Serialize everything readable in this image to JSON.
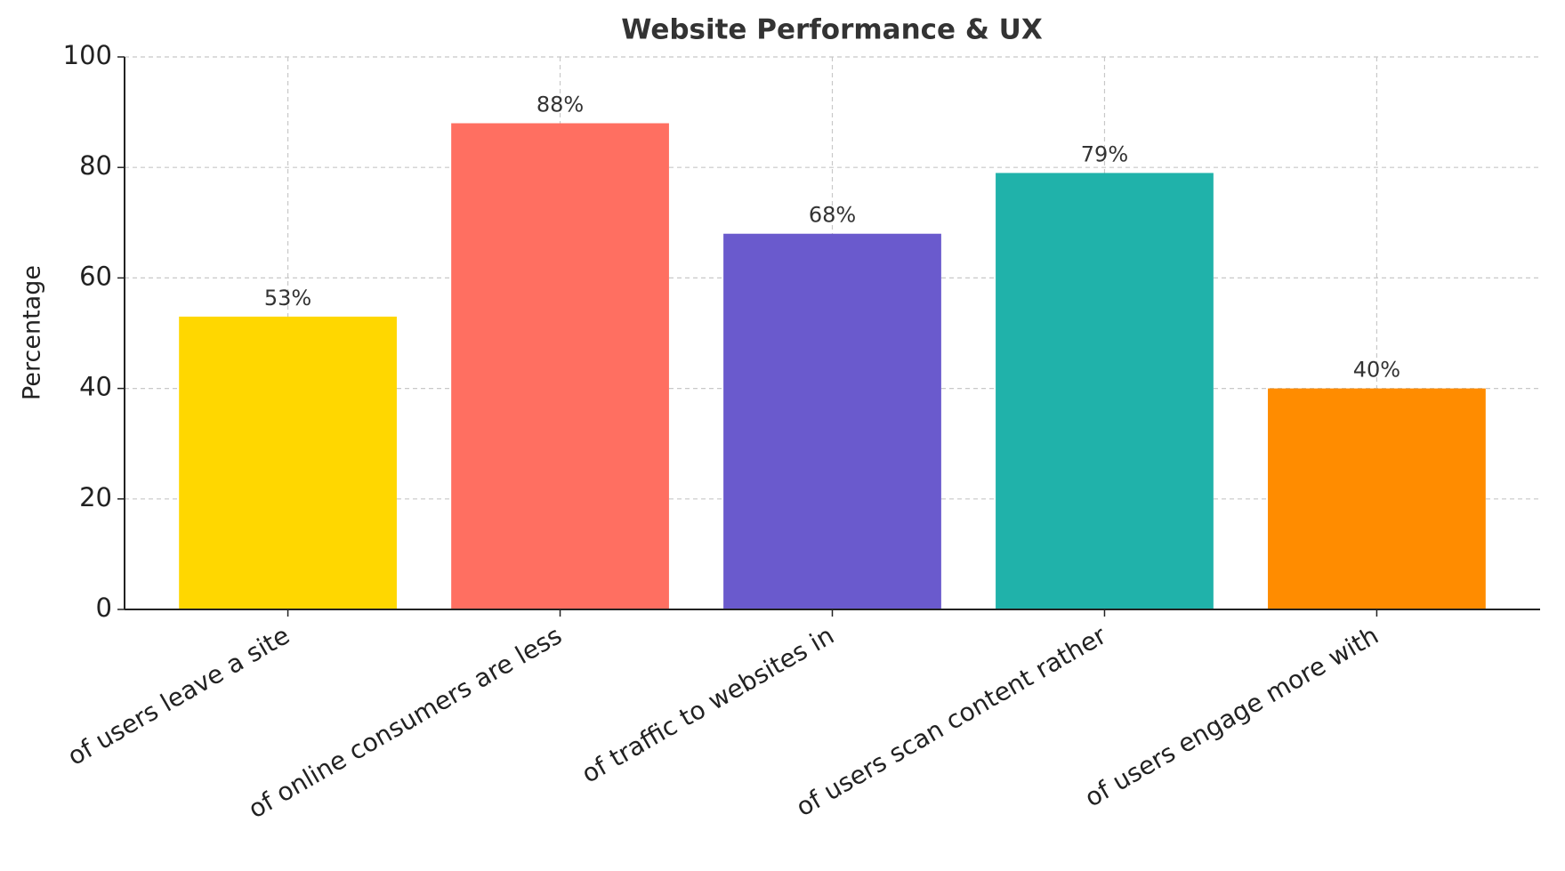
{
  "chart_data": {
    "type": "bar",
    "title": "Website Performance & UX",
    "ylabel": "Percentage",
    "categories": [
      "of users leave a site",
      "of online consumers are less",
      "of traffic to websites in",
      "of users scan content rather",
      "of users engage more with"
    ],
    "values": [
      53,
      88,
      68,
      79,
      40
    ],
    "value_labels": [
      "53%",
      "88%",
      "68%",
      "79%",
      "40%"
    ],
    "colors": [
      "#ffd700",
      "#ff6f61",
      "#6a5acd",
      "#20b2aa",
      "#ff8c00"
    ],
    "ylim": [
      0,
      100
    ],
    "yticks": [
      0,
      20,
      40,
      60,
      80,
      100
    ],
    "grid": true
  }
}
